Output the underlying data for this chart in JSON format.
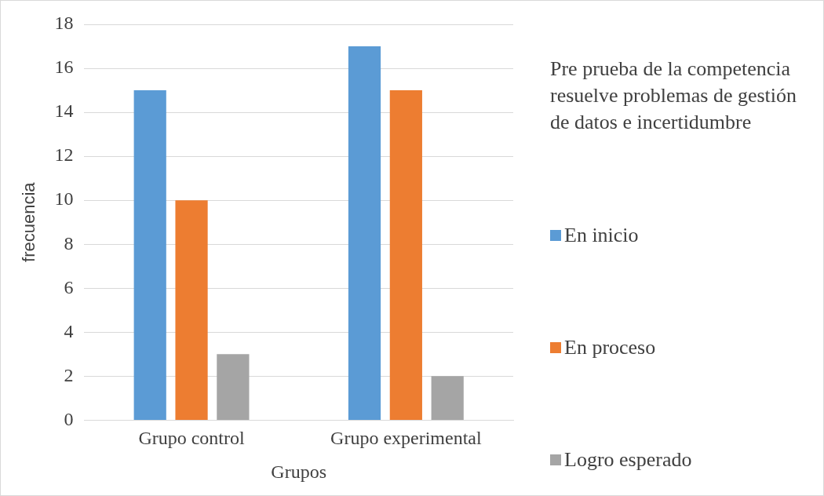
{
  "chart_data": {
    "type": "bar",
    "xlabel": "Grupos",
    "ylabel": "frecuencia",
    "legend_title": "Pre prueba de la competencia resuelve problemas de gestión de datos e incertidumbre",
    "categories": [
      "Grupo control",
      "Grupo experimental"
    ],
    "series": [
      {
        "name": "En inicio",
        "color": "#5b9bd5",
        "values": [
          15,
          17
        ]
      },
      {
        "name": "En proceso",
        "color": "#ed7d31",
        "values": [
          10,
          15
        ]
      },
      {
        "name": "Logro esperado",
        "color": "#a5a5a5",
        "values": [
          3,
          2
        ]
      }
    ],
    "ylim": [
      0,
      18
    ],
    "yticks": [
      0,
      2,
      4,
      6,
      8,
      10,
      12,
      14,
      16,
      18
    ],
    "grid": "y",
    "legend": "right"
  }
}
